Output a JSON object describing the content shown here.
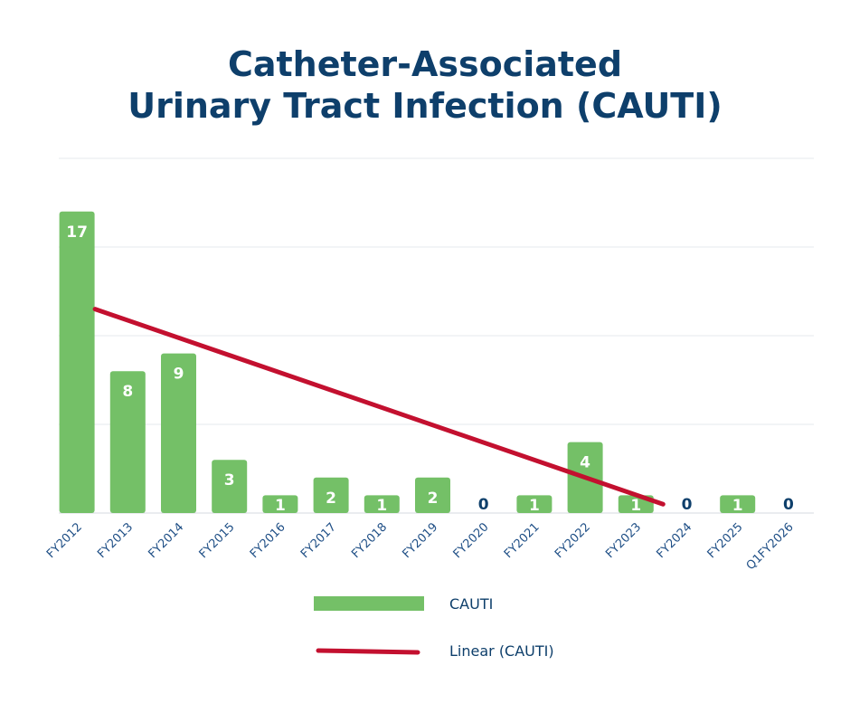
{
  "chart_data": {
    "type": "bar",
    "title_line1": "Catheter-Associated",
    "title_line2": "Urinary Tract Infection (CAUTI)",
    "categories": [
      "FY2012",
      "FY2013",
      "FY2014",
      "FY2015",
      "FY2016",
      "FY2017",
      "FY2018",
      "FY2019",
      "FY2020",
      "FY2021",
      "FY2022",
      "FY2023",
      "FY2024",
      "FY2025",
      "Q1FY2026"
    ],
    "series": [
      {
        "name": "CAUTI",
        "values": [
          17,
          8,
          9,
          3,
          1,
          2,
          1,
          2,
          0,
          1,
          4,
          1,
          0,
          1,
          0
        ],
        "color": "#74c067"
      }
    ],
    "trendline": {
      "name": "Linear (CAUTI)",
      "color": "#c3102f",
      "start": {
        "category": "FY2012",
        "value": 11.5
      },
      "end": {
        "category": "FY2023",
        "value": 0.5
      }
    },
    "ylim": [
      0,
      20
    ],
    "ytick_step": 5,
    "grid": true,
    "legend_position": "bottom",
    "label_color": "#0e3f6b"
  }
}
